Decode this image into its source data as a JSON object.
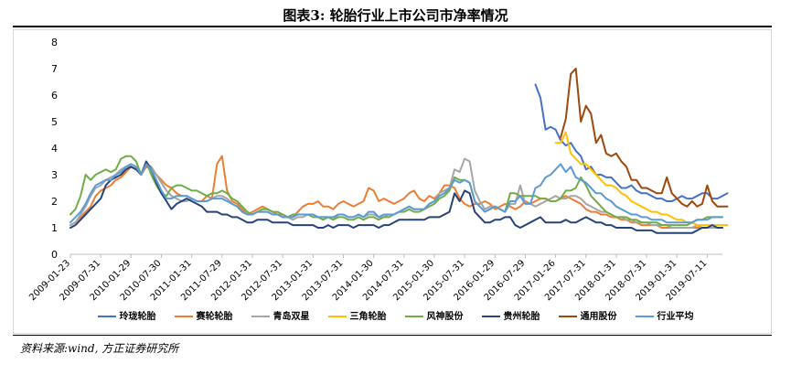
{
  "figure": {
    "title": "图表3:     轮胎行业上市公司市净率情况",
    "source": "资料来源:wind, 方正证券研究所"
  },
  "chart_data": {
    "type": "line",
    "ylim": [
      0,
      8
    ],
    "yticks": [
      0,
      1,
      2,
      3,
      4,
      5,
      6,
      7,
      8
    ],
    "xlim": [
      0,
      129
    ],
    "xtick_labels": [
      "2009-01-23",
      "2009-07-31",
      "2010-01-29",
      "2010-07-30",
      "2011-01-31",
      "2011-07-29",
      "2012-01-31",
      "2012-07-31",
      "2013-01-31",
      "2013-07-31",
      "2014-01-30",
      "2014-07-31",
      "2015-01-30",
      "2015-07-31",
      "2016-01-29",
      "2016-07-29",
      "2017-01-26",
      "2017-07-31",
      "2018-01-31",
      "2018-07-31",
      "2019-01-31",
      "2019-07-11"
    ],
    "xtick_positions": [
      0,
      6,
      12,
      18,
      24,
      30,
      36,
      42,
      48,
      54,
      60,
      66,
      72,
      78,
      84,
      90,
      96,
      102,
      108,
      114,
      120,
      126
    ],
    "grid": false,
    "legend_position": "bottom",
    "series": [
      {
        "name": "玲珑轮胎",
        "color": "#4472c4",
        "start_index": 92,
        "values": [
          6.4,
          5.9,
          4.7,
          4.8,
          4.7,
          4.3,
          4.1,
          4.2,
          3.9,
          3.7,
          3.2,
          3.3,
          3.0,
          3.0,
          2.9,
          2.9,
          2.7,
          2.5,
          2.5,
          2.6,
          2.4,
          2.3,
          2.3,
          2.2,
          2.1,
          2.1,
          2.0,
          2.0,
          2.1,
          2.2,
          2.1,
          2.1,
          2.2,
          2.3,
          2.3,
          2.1,
          2.1,
          2.2,
          2.3
        ]
      },
      {
        "name": "赛轮轮胎",
        "color": "#ed7d31",
        "start_index": 0,
        "values": [
          1.1,
          1.2,
          1.4,
          1.6,
          1.8,
          2.2,
          2.4,
          2.5,
          2.6,
          2.8,
          2.9,
          3.1,
          3.3,
          3.2,
          3.0,
          3.3,
          3.2,
          3.0,
          2.8,
          2.6,
          2.5,
          2.3,
          2.2,
          2.2,
          2.1,
          2.0,
          2.0,
          2.2,
          2.1,
          3.4,
          3.7,
          2.4,
          2.0,
          1.9,
          1.7,
          1.5,
          1.6,
          1.7,
          1.8,
          1.7,
          1.6,
          1.5,
          1.5,
          1.4,
          1.4,
          1.6,
          1.8,
          1.9,
          1.9,
          2.0,
          1.8,
          1.8,
          1.7,
          1.9,
          2.0,
          1.9,
          1.8,
          1.9,
          2.0,
          2.5,
          2.4,
          2.0,
          2.1,
          2.0,
          1.9,
          2.0,
          2.1,
          2.3,
          2.4,
          2.1,
          2.0,
          2.2,
          2.1,
          2.3,
          2.6,
          2.6,
          2.5,
          2.1,
          1.9,
          1.8,
          1.9,
          1.9,
          2.0,
          1.9,
          1.7,
          1.8,
          1.9,
          1.8,
          1.7,
          1.8,
          2.0,
          1.9,
          2.0,
          2.1,
          2.1,
          2.0,
          2.0,
          2.1,
          2.2,
          2.1,
          2.0,
          1.9,
          1.7,
          1.6,
          1.6,
          1.5,
          1.5,
          1.4,
          1.4,
          1.3,
          1.3,
          1.2,
          1.2,
          1.1,
          1.1,
          1.1,
          1.1,
          1.0,
          1.0,
          1.0,
          1.0,
          1.0,
          1.0,
          1.0,
          1.0,
          1.0,
          1.0,
          1.0,
          1.0,
          1.0
        ]
      },
      {
        "name": "青岛双星",
        "color": "#a5a5a5",
        "start_index": 0,
        "values": [
          1.1,
          1.2,
          1.5,
          1.8,
          2.2,
          2.5,
          2.6,
          2.8,
          2.9,
          3.0,
          3.2,
          3.3,
          3.3,
          3.2,
          3.0,
          3.4,
          3.3,
          3.0,
          2.7,
          2.4,
          2.2,
          2.1,
          2.0,
          2.0,
          2.1,
          2.0,
          2.0,
          2.0,
          2.1,
          2.2,
          2.2,
          2.1,
          1.9,
          1.8,
          1.6,
          1.5,
          1.5,
          1.6,
          1.6,
          1.6,
          1.5,
          1.5,
          1.4,
          1.4,
          1.3,
          1.4,
          1.4,
          1.5,
          1.5,
          1.4,
          1.4,
          1.4,
          1.3,
          1.5,
          1.5,
          1.4,
          1.4,
          1.5,
          1.4,
          1.5,
          1.5,
          1.4,
          1.4,
          1.5,
          1.5,
          1.6,
          1.7,
          1.8,
          1.7,
          1.7,
          1.7,
          1.9,
          2.0,
          2.3,
          2.4,
          2.5,
          3.2,
          3.1,
          3.6,
          3.5,
          2.4,
          2.0,
          1.7,
          1.8,
          1.8,
          1.7,
          1.6,
          1.9,
          1.9,
          2.6,
          1.9,
          1.9,
          1.8,
          1.9,
          2.0,
          2.1,
          2.2,
          2.1,
          2.1,
          2.2,
          2.2,
          2.1,
          1.9,
          1.8,
          1.7,
          1.6,
          1.6,
          1.5,
          1.4,
          1.4,
          1.3,
          1.3,
          1.2,
          1.2,
          1.2,
          1.1,
          1.1,
          1.1,
          1.1,
          1.0,
          1.0,
          1.0,
          1.0,
          1.0,
          1.1,
          1.0,
          1.0,
          1.0,
          1.0,
          1.0
        ]
      },
      {
        "name": "三角轮胎",
        "color": "#ffc000",
        "start_index": 96,
        "values": [
          4.2,
          4.2,
          4.6,
          3.8,
          3.6,
          3.4,
          3.4,
          3.2,
          3.0,
          2.8,
          2.6,
          2.6,
          2.5,
          2.3,
          2.2,
          2.0,
          1.9,
          1.8,
          1.7,
          1.6,
          1.6,
          1.5,
          1.5,
          1.4,
          1.3,
          1.3,
          1.2,
          1.2,
          1.1,
          1.1,
          1.1,
          1.1,
          1.1,
          1.1,
          1.1
        ]
      },
      {
        "name": "风神股份",
        "color": "#70ad47",
        "start_index": 0,
        "values": [
          1.5,
          1.7,
          2.2,
          3.0,
          2.8,
          3.0,
          3.1,
          3.2,
          3.1,
          3.2,
          3.6,
          3.7,
          3.7,
          3.5,
          3.0,
          3.5,
          3.0,
          2.6,
          2.3,
          2.2,
          2.5,
          2.6,
          2.6,
          2.5,
          2.4,
          2.4,
          2.3,
          2.2,
          2.3,
          2.3,
          2.4,
          2.3,
          2.1,
          2.0,
          1.8,
          1.6,
          1.5,
          1.6,
          1.7,
          1.7,
          1.6,
          1.6,
          1.5,
          1.4,
          1.5,
          1.5,
          1.5,
          1.5,
          1.4,
          1.4,
          1.3,
          1.4,
          1.3,
          1.4,
          1.4,
          1.3,
          1.3,
          1.4,
          1.3,
          1.4,
          1.4,
          1.3,
          1.4,
          1.4,
          1.5,
          1.6,
          1.6,
          1.7,
          1.6,
          1.6,
          1.7,
          1.8,
          1.9,
          2.1,
          2.2,
          2.4,
          2.9,
          2.8,
          2.8,
          2.7,
          2.0,
          1.8,
          1.6,
          1.7,
          1.8,
          1.7,
          1.6,
          2.3,
          2.3,
          2.2,
          2.2,
          2.2,
          2.2,
          2.1,
          2.1,
          2.0,
          2.0,
          2.1,
          2.4,
          2.4,
          2.5,
          2.9,
          2.6,
          2.2,
          2.0,
          1.8,
          1.6,
          1.5,
          1.4,
          1.4,
          1.4,
          1.3,
          1.3,
          1.2,
          1.2,
          1.2,
          1.2,
          1.1,
          1.1,
          1.1,
          1.1,
          1.1,
          1.1,
          1.2,
          1.3,
          1.3,
          1.4,
          1.4,
          1.4,
          1.4
        ]
      },
      {
        "name": "贵州轮胎",
        "color": "#264478",
        "start_index": 0,
        "values": [
          1.0,
          1.1,
          1.3,
          1.5,
          1.7,
          1.9,
          2.1,
          2.6,
          2.8,
          2.9,
          3.0,
          3.2,
          3.3,
          3.2,
          3.0,
          3.5,
          3.2,
          2.7,
          2.3,
          2.0,
          1.7,
          1.9,
          2.0,
          2.1,
          2.0,
          1.9,
          1.8,
          1.6,
          1.6,
          1.6,
          1.5,
          1.5,
          1.4,
          1.4,
          1.3,
          1.2,
          1.2,
          1.3,
          1.3,
          1.3,
          1.2,
          1.2,
          1.2,
          1.2,
          1.1,
          1.1,
          1.1,
          1.1,
          1.1,
          1.0,
          1.0,
          1.1,
          1.0,
          1.1,
          1.1,
          1.1,
          1.0,
          1.1,
          1.1,
          1.1,
          1.1,
          1.0,
          1.1,
          1.1,
          1.2,
          1.3,
          1.3,
          1.3,
          1.3,
          1.3,
          1.3,
          1.4,
          1.4,
          1.4,
          1.5,
          1.6,
          2.3,
          2.0,
          2.4,
          2.3,
          1.6,
          1.4,
          1.2,
          1.2,
          1.3,
          1.3,
          1.4,
          1.4,
          1.1,
          1.0,
          1.1,
          1.2,
          1.3,
          1.4,
          1.2,
          1.2,
          1.2,
          1.2,
          1.3,
          1.2,
          1.2,
          1.3,
          1.4,
          1.3,
          1.2,
          1.2,
          1.1,
          1.1,
          1.0,
          1.0,
          1.0,
          1.0,
          0.9,
          0.9,
          0.9,
          0.9,
          0.8,
          0.8,
          0.8,
          0.8,
          0.8,
          0.8,
          0.8,
          0.8,
          0.9,
          1.0,
          1.0,
          1.1,
          1.0,
          1.0
        ]
      },
      {
        "name": "通用股份",
        "color": "#9e480e",
        "start_index": 97,
        "values": [
          4.4,
          5.1,
          6.8,
          7.0,
          5.0,
          5.6,
          5.3,
          4.2,
          4.5,
          3.8,
          3.7,
          3.8,
          3.5,
          3.3,
          2.8,
          2.8,
          2.5,
          2.5,
          2.4,
          2.3,
          2.3,
          2.9,
          2.3,
          2.1,
          1.9,
          1.8,
          2.0,
          1.8,
          1.9,
          2.6,
          2.0,
          1.8,
          1.8,
          1.8
        ]
      },
      {
        "name": "行业平均",
        "color": "#5b9bd5",
        "start_index": 0,
        "values": [
          1.2,
          1.4,
          1.6,
          1.9,
          2.3,
          2.6,
          2.7,
          2.8,
          2.8,
          3.0,
          3.1,
          3.3,
          3.4,
          3.3,
          3.0,
          3.4,
          3.2,
          2.8,
          2.4,
          2.1,
          2.1,
          2.2,
          2.2,
          2.2,
          2.1,
          2.0,
          2.0,
          2.0,
          2.1,
          2.1,
          2.1,
          2.0,
          1.9,
          1.8,
          1.6,
          1.5,
          1.5,
          1.6,
          1.6,
          1.6,
          1.5,
          1.5,
          1.4,
          1.4,
          1.4,
          1.5,
          1.5,
          1.5,
          1.5,
          1.4,
          1.4,
          1.4,
          1.4,
          1.5,
          1.5,
          1.4,
          1.4,
          1.5,
          1.4,
          1.6,
          1.6,
          1.4,
          1.5,
          1.5,
          1.5,
          1.6,
          1.7,
          1.8,
          1.7,
          1.7,
          1.7,
          1.9,
          2.0,
          2.2,
          2.3,
          2.5,
          2.8,
          2.7,
          2.8,
          2.7,
          2.0,
          1.8,
          1.6,
          1.7,
          1.8,
          1.7,
          1.6,
          2.0,
          2.0,
          2.2,
          1.9,
          1.9,
          2.5,
          2.6,
          2.9,
          3.0,
          3.2,
          3.4,
          3.1,
          3.3,
          2.9,
          2.8,
          2.7,
          2.5,
          2.3,
          2.3,
          2.1,
          2.0,
          1.8,
          1.7,
          1.6,
          1.5,
          1.5,
          1.4,
          1.4,
          1.3,
          1.3,
          1.3,
          1.2,
          1.2,
          1.2,
          1.2,
          1.2,
          1.2,
          1.3,
          1.3,
          1.3,
          1.4,
          1.4,
          1.4
        ]
      }
    ]
  }
}
